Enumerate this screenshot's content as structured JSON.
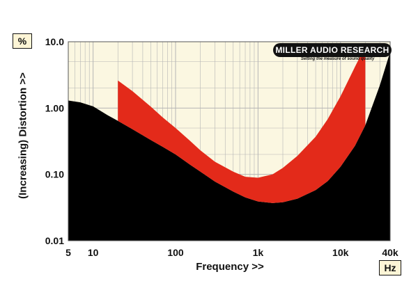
{
  "chart_data": {
    "type": "area",
    "xlabel": "Frequency >>",
    "ylabel": "(Increasing) Distortion >>",
    "x_unit": "Hz",
    "y_unit": "%",
    "x_scale": "log",
    "y_scale": "log",
    "xlim": [
      5,
      40000
    ],
    "ylim": [
      0.01,
      10
    ],
    "x_ticks": [
      {
        "value": 5,
        "label": "5"
      },
      {
        "value": 10,
        "label": "10"
      },
      {
        "value": 100,
        "label": "100"
      },
      {
        "value": 1000,
        "label": "1k"
      },
      {
        "value": 10000,
        "label": "10k"
      },
      {
        "value": 40000,
        "label": "40k"
      }
    ],
    "y_ticks": [
      {
        "value": 10,
        "label": "10.0"
      },
      {
        "value": 1,
        "label": "1.00"
      },
      {
        "value": 0.1,
        "label": "0.10"
      },
      {
        "value": 0.01,
        "label": "0.01"
      }
    ],
    "grid": true,
    "series": [
      {
        "role": "noise-floor",
        "color": "#000000",
        "x": [
          5,
          7,
          10,
          15,
          20,
          30,
          50,
          70,
          100,
          150,
          200,
          300,
          500,
          700,
          1000,
          1500,
          2000,
          3000,
          5000,
          7000,
          10000,
          15000,
          20000,
          30000,
          40000
        ],
        "y": [
          1.3,
          1.22,
          1.06,
          0.78,
          0.64,
          0.48,
          0.33,
          0.26,
          0.2,
          0.14,
          0.11,
          0.078,
          0.055,
          0.045,
          0.039,
          0.037,
          0.038,
          0.043,
          0.058,
          0.079,
          0.13,
          0.27,
          0.55,
          2.2,
          7.0
        ]
      },
      {
        "role": "distortion-band",
        "color": "#e32a1a",
        "x": [
          20,
          30,
          50,
          70,
          100,
          150,
          200,
          300,
          500,
          700,
          1000,
          1500,
          2000,
          3000,
          5000,
          7000,
          10000,
          15000,
          20000
        ],
        "upper": [
          2.6,
          1.8,
          1.05,
          0.72,
          0.5,
          0.32,
          0.23,
          0.155,
          0.11,
          0.092,
          0.089,
          0.1,
          0.125,
          0.19,
          0.37,
          0.68,
          1.5,
          4.2,
          8.5
        ],
        "lower": [
          0.64,
          0.48,
          0.33,
          0.26,
          0.2,
          0.14,
          0.11,
          0.078,
          0.055,
          0.045,
          0.039,
          0.037,
          0.038,
          0.043,
          0.058,
          0.079,
          0.13,
          0.27,
          0.55
        ]
      }
    ],
    "colors": {
      "plot_background": "#fbf7e1",
      "grid_line": "#b5b5b5",
      "axis_frame": "#555555",
      "tick_text": "#111111"
    }
  },
  "logo": {
    "name": "MILLER AUDIO RESEARCH",
    "tagline": "Setting the measure of sound quality"
  }
}
